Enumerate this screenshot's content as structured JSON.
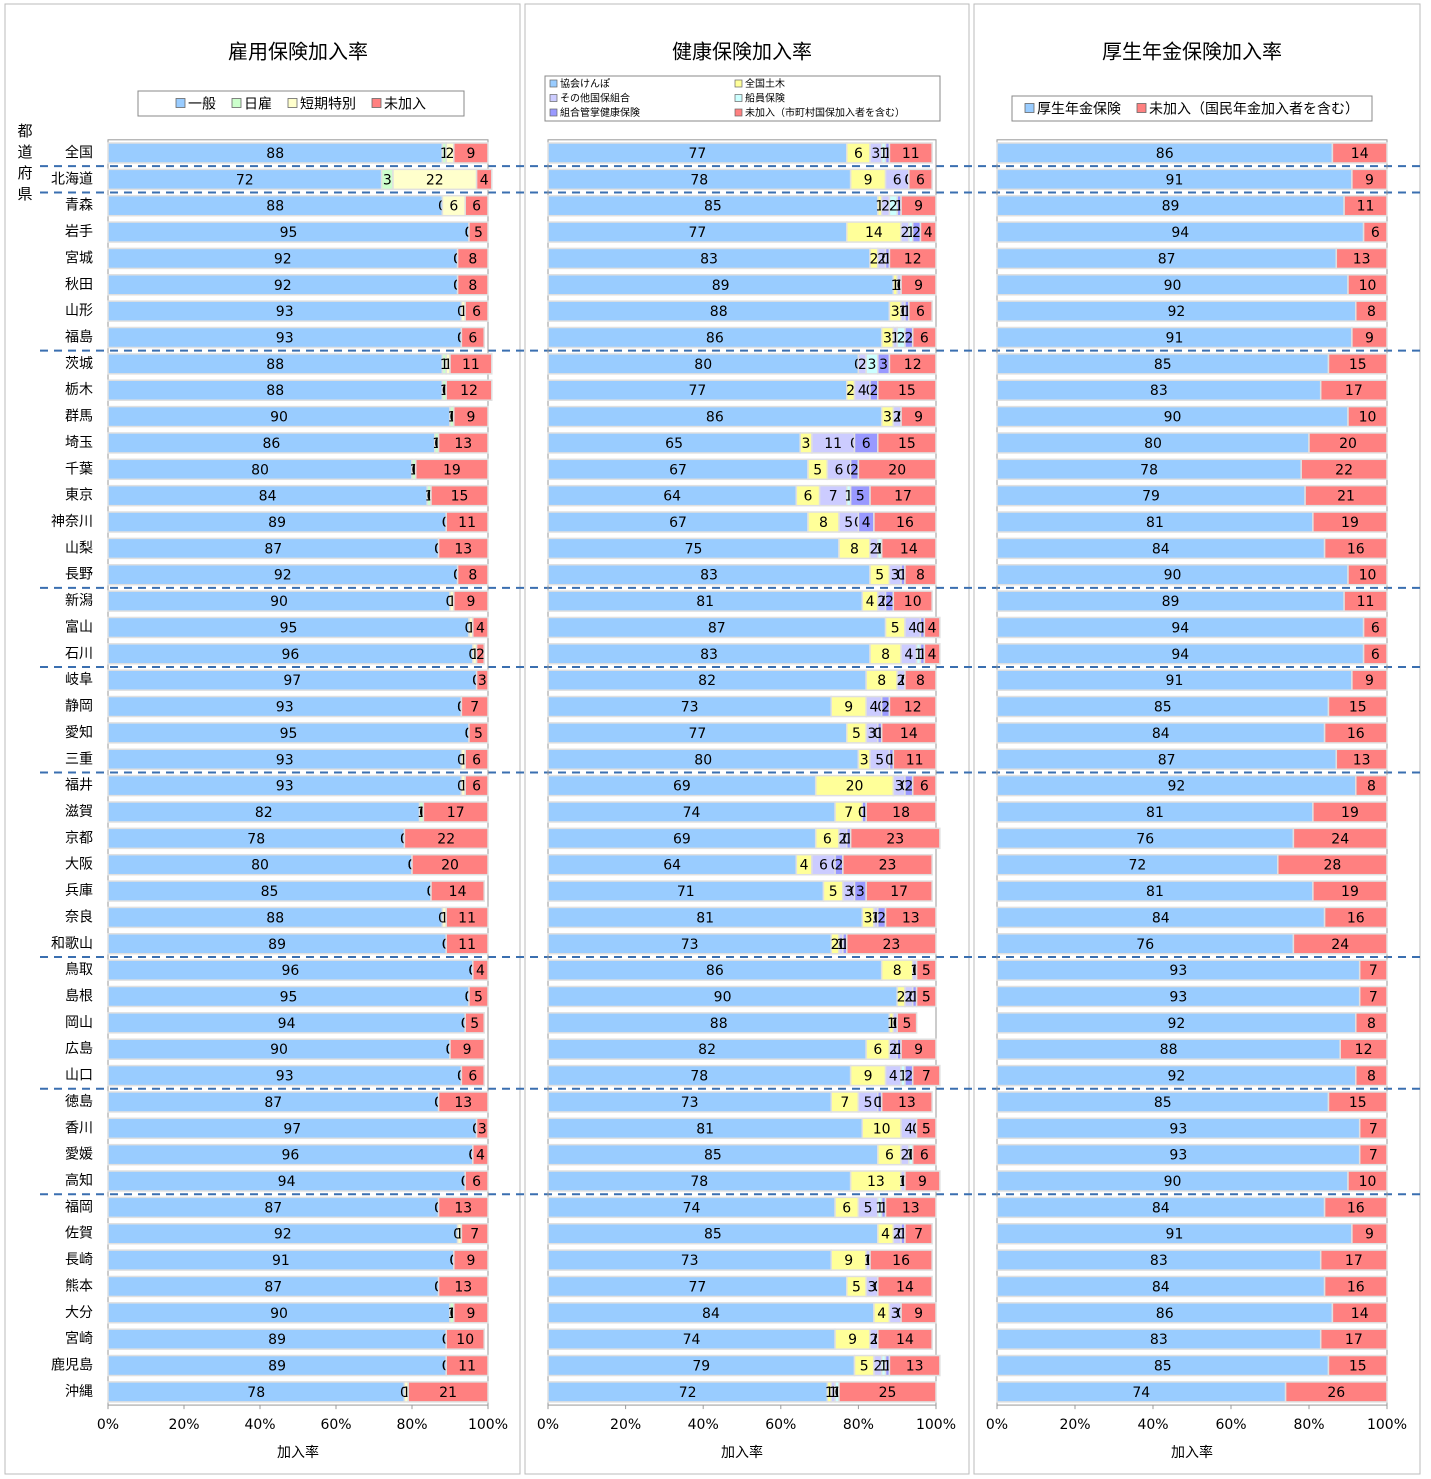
{
  "chart_data": [
    {
      "type": "bar",
      "orientation": "horizontal",
      "stacked": true,
      "title": "雇用保険加入率",
      "xlabel": "加入率",
      "ylabel": "都道府県",
      "categories": [
        "全国",
        "北海道",
        "青森",
        "岩手",
        "宮城",
        "秋田",
        "山形",
        "福島",
        "茨城",
        "栃木",
        "群馬",
        "埼玉",
        "千葉",
        "東京",
        "神奈川",
        "山梨",
        "長野",
        "新潟",
        "富山",
        "石川",
        "岐阜",
        "静岡",
        "愛知",
        "三重",
        "福井",
        "滋賀",
        "京都",
        "大阪",
        "兵庫",
        "奈良",
        "和歌山",
        "鳥取",
        "島根",
        "岡山",
        "広島",
        "山口",
        "徳島",
        "香川",
        "愛媛",
        "高知",
        "福岡",
        "佐賀",
        "長崎",
        "熊本",
        "大分",
        "宮崎",
        "鹿児島",
        "沖縄"
      ],
      "series": [
        {
          "name": "一般",
          "color": "#99ccff",
          "values": [
            88,
            72,
            88,
            95,
            92,
            92,
            93,
            93,
            88,
            88,
            90,
            86,
            80,
            84,
            89,
            87,
            92,
            90,
            95,
            96,
            97,
            93,
            95,
            93,
            93,
            82,
            78,
            80,
            85,
            88,
            89,
            96,
            95,
            94,
            90,
            93,
            87,
            97,
            96,
            94,
            87,
            92,
            91,
            87,
            90,
            89,
            89,
            78
          ]
        },
        {
          "name": "日雇",
          "color": "#ccffcc",
          "values": [
            1,
            3,
            0,
            0,
            0,
            0,
            0,
            0,
            1,
            1,
            1,
            1,
            1,
            1,
            0,
            0,
            0,
            0,
            0,
            0,
            0,
            0,
            0,
            0,
            0,
            1,
            0,
            0,
            0,
            0,
            0,
            0,
            0,
            0,
            0,
            0,
            0,
            0,
            0,
            0,
            0,
            0,
            0,
            0,
            1,
            0,
            0,
            0
          ]
        },
        {
          "name": "短期特別",
          "color": "#ffffcc",
          "values": [
            2,
            22,
            6,
            0,
            0,
            0,
            1,
            0,
            1,
            0,
            0,
            0,
            0,
            0,
            0,
            0,
            0,
            1,
            1,
            1,
            0,
            0,
            0,
            1,
            1,
            0,
            0,
            0,
            0,
            1,
            0,
            0,
            0,
            0,
            0,
            0,
            0,
            0,
            0,
            0,
            0,
            1,
            0,
            0,
            0,
            0,
            0,
            1
          ]
        },
        {
          "name": "未加入",
          "color": "#ff8080",
          "values": [
            9,
            4,
            6,
            5,
            8,
            8,
            6,
            6,
            11,
            12,
            9,
            13,
            19,
            15,
            11,
            13,
            8,
            9,
            4,
            2,
            3,
            7,
            5,
            6,
            6,
            17,
            22,
            20,
            14,
            11,
            11,
            4,
            5,
            5,
            9,
            6,
            13,
            3,
            4,
            6,
            13,
            7,
            9,
            13,
            9,
            10,
            11,
            21
          ]
        }
      ],
      "xlim": [
        0,
        100
      ],
      "xticks": [
        {
          "value": 0,
          "label": "0%"
        },
        {
          "value": 20,
          "label": "20%"
        },
        {
          "value": 40,
          "label": "40%"
        },
        {
          "value": 60,
          "label": "60%"
        },
        {
          "value": 80,
          "label": "80%"
        },
        {
          "value": 100,
          "label": "100%"
        }
      ],
      "legend": "top"
    },
    {
      "type": "bar",
      "orientation": "horizontal",
      "stacked": true,
      "title": "健康保険加入率",
      "xlabel": "加入率",
      "series": [
        {
          "name": "協会けんぽ",
          "color": "#99ccff",
          "values": [
            77,
            78,
            85,
            77,
            83,
            89,
            88,
            86,
            80,
            77,
            86,
            65,
            67,
            64,
            67,
            75,
            83,
            81,
            87,
            83,
            82,
            73,
            77,
            80,
            69,
            74,
            69,
            64,
            71,
            81,
            73,
            86,
            90,
            88,
            82,
            78,
            73,
            81,
            85,
            78,
            74,
            85,
            73,
            77,
            84,
            74,
            79,
            72
          ]
        },
        {
          "name": "全国土木",
          "color": "#ffff99",
          "values": [
            6,
            9,
            1,
            14,
            2,
            1,
            3,
            3,
            0,
            2,
            3,
            3,
            5,
            6,
            8,
            8,
            5,
            4,
            5,
            8,
            8,
            9,
            5,
            3,
            20,
            7,
            6,
            4,
            5,
            3,
            2,
            8,
            2,
            1,
            6,
            9,
            7,
            10,
            6,
            13,
            6,
            4,
            9,
            5,
            4,
            9,
            5,
            1
          ]
        },
        {
          "name": "その他国保組合",
          "color": "#ccccff",
          "values": [
            3,
            6,
            2,
            2,
            2,
            1,
            1,
            1,
            2,
            4,
            2,
            11,
            6,
            7,
            5,
            2,
            3,
            2,
            4,
            4,
            2,
            4,
            3,
            5,
            3,
            0,
            2,
            6,
            3,
            1,
            1,
            1,
            2,
            1,
            2,
            4,
            5,
            4,
            2,
            1,
            5,
            2,
            1,
            3,
            3,
            2,
            2,
            1
          ]
        },
        {
          "name": "船員保険",
          "color": "#ccffff",
          "values": [
            1,
            0,
            2,
            1,
            0,
            0,
            0,
            2,
            3,
            0,
            0,
            0,
            0,
            1,
            0,
            1,
            0,
            0,
            0,
            1,
            0,
            0,
            0,
            0,
            0,
            0,
            0,
            0,
            0,
            0,
            0,
            0,
            0,
            0,
            0,
            1,
            0,
            0,
            1,
            0,
            1,
            0,
            0,
            0,
            0,
            0,
            1,
            1
          ]
        },
        {
          "name": "組合管掌健康保険",
          "color": "#9999ff",
          "values": [
            1,
            0,
            1,
            2,
            1,
            0,
            1,
            2,
            3,
            2,
            0,
            6,
            2,
            5,
            4,
            0,
            1,
            2,
            1,
            1,
            0,
            2,
            1,
            1,
            2,
            1,
            1,
            2,
            3,
            2,
            1,
            0,
            1,
            0,
            1,
            2,
            1,
            0,
            0,
            0,
            1,
            1,
            0,
            0,
            0,
            0,
            1,
            0
          ]
        },
        {
          "name": "未加入（市町村国保加入者を含む）",
          "color": "#ff8080",
          "values": [
            11,
            6,
            9,
            4,
            12,
            9,
            6,
            6,
            12,
            15,
            9,
            15,
            20,
            17,
            16,
            14,
            8,
            10,
            4,
            4,
            8,
            12,
            14,
            11,
            6,
            18,
            23,
            23,
            17,
            13,
            23,
            5,
            5,
            5,
            9,
            7,
            13,
            5,
            6,
            9,
            13,
            7,
            16,
            14,
            9,
            14,
            13,
            25
          ]
        }
      ],
      "xlim": [
        0,
        100
      ],
      "xticks": [
        {
          "value": 0,
          "label": "0%"
        },
        {
          "value": 20,
          "label": "20%"
        },
        {
          "value": 40,
          "label": "40%"
        },
        {
          "value": 60,
          "label": "60%"
        },
        {
          "value": 80,
          "label": "80%"
        },
        {
          "value": 100,
          "label": "100%"
        }
      ],
      "legend": "top"
    },
    {
      "type": "bar",
      "orientation": "horizontal",
      "stacked": true,
      "title": "厚生年金保険加入率",
      "xlabel": "加入率",
      "series": [
        {
          "name": "厚生年金保険",
          "color": "#99ccff",
          "values": [
            86,
            91,
            89,
            94,
            87,
            90,
            92,
            91,
            85,
            83,
            90,
            80,
            78,
            79,
            81,
            84,
            90,
            89,
            94,
            94,
            91,
            85,
            84,
            87,
            92,
            81,
            76,
            72,
            81,
            84,
            76,
            93,
            93,
            92,
            88,
            92,
            85,
            93,
            93,
            90,
            84,
            91,
            83,
            84,
            86,
            83,
            85,
            74
          ]
        },
        {
          "name": "未加入（国民年金加入者を含む）",
          "color": "#ff8080",
          "values": [
            14,
            9,
            11,
            6,
            13,
            10,
            8,
            9,
            15,
            17,
            10,
            20,
            22,
            21,
            19,
            16,
            10,
            11,
            6,
            6,
            9,
            15,
            16,
            13,
            8,
            19,
            24,
            28,
            19,
            16,
            24,
            7,
            7,
            8,
            12,
            8,
            15,
            7,
            7,
            10,
            16,
            9,
            17,
            16,
            14,
            17,
            15,
            26
          ]
        }
      ],
      "xlim": [
        0,
        100
      ],
      "xticks": [
        {
          "value": 0,
          "label": "0%"
        },
        {
          "value": 20,
          "label": "20%"
        },
        {
          "value": 40,
          "label": "40%"
        },
        {
          "value": 60,
          "label": "60%"
        },
        {
          "value": 80,
          "label": "80%"
        },
        {
          "value": 100,
          "label": "100%"
        }
      ],
      "legend": "top"
    }
  ]
}
